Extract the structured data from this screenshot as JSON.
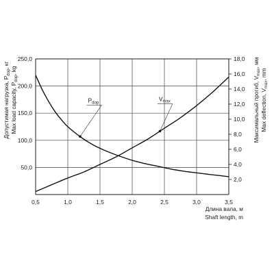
{
  "chart_data": {
    "type": "line",
    "xlabel_ru": "Длина вала, м",
    "xlabel_en": "Shaft length, m",
    "ylabel_left_ru": {
      "base": "Допустимая нагрузка, P",
      "sub": "dop",
      "unit": ", кг"
    },
    "ylabel_left_en": {
      "base": "Max load capacity, P",
      "sub": "dop",
      "unit": ", kg"
    },
    "ylabel_right_ru": {
      "base": "Максимальный прогиб, V",
      "sub": "max",
      "unit": ", мм"
    },
    "ylabel_right_en": {
      "base": "Max deflection, V",
      "sub": "max",
      "unit": ", mm"
    },
    "xlim": [
      0.5,
      3.5
    ],
    "ylim_left": [
      0,
      250
    ],
    "ylim_right": [
      0,
      18
    ],
    "x_ticks": [
      {
        "value": 0.5,
        "label": "0,5"
      },
      {
        "value": 1.0,
        "label": "1,0"
      },
      {
        "value": 1.5,
        "label": "1,5"
      },
      {
        "value": 2.0,
        "label": "2,0"
      },
      {
        "value": 2.5,
        "label": "2,5"
      },
      {
        "value": 3.0,
        "label": "3,0"
      },
      {
        "value": 3.5,
        "label": "3,5"
      }
    ],
    "y_left_ticks": [
      {
        "value": 50,
        "label": "50,0"
      },
      {
        "value": 100,
        "label": "100,0"
      },
      {
        "value": 150,
        "label": "150,0"
      },
      {
        "value": 200,
        "label": "200,0"
      },
      {
        "value": 250,
        "label": "250,0"
      }
    ],
    "y_right_ticks": [
      {
        "value": 2,
        "label": "2,0"
      },
      {
        "value": 4,
        "label": "4,0"
      },
      {
        "value": 6,
        "label": "6,0"
      },
      {
        "value": 8,
        "label": "8,0"
      },
      {
        "value": 10,
        "label": "10,0"
      },
      {
        "value": 12,
        "label": "12,0"
      },
      {
        "value": 14,
        "label": "14,0"
      },
      {
        "value": 16,
        "label": "16,0"
      },
      {
        "value": 18,
        "label": "18,0"
      }
    ],
    "grid": true,
    "series": [
      {
        "name": {
          "base": "P",
          "sub": "dop"
        },
        "axis": "left",
        "x": [
          0.5,
          0.6,
          0.7,
          0.8,
          0.9,
          1.0,
          1.2,
          1.4,
          1.6,
          1.8,
          2.0,
          2.2,
          2.4,
          2.6,
          2.8,
          3.0,
          3.2,
          3.5
        ],
        "y": [
          220,
          194,
          172,
          153,
          138,
          125,
          106,
          91,
          80,
          71,
          63,
          57,
          52,
          47,
          43,
          40,
          37,
          33
        ],
        "label_at": {
          "x": 1.42,
          "y": 170
        }
      },
      {
        "name": {
          "base": "V",
          "sub": "max"
        },
        "axis": "right",
        "x": [
          0.5,
          0.75,
          1.0,
          1.25,
          1.5,
          1.75,
          2.0,
          2.25,
          2.5,
          2.75,
          3.0,
          3.25,
          3.5
        ],
        "y": [
          0.4,
          1.3,
          2.2,
          3.0,
          4.0,
          5.0,
          6.2,
          7.4,
          8.8,
          10.2,
          11.8,
          13.6,
          15.6
        ],
        "label_at": {
          "x": 2.52,
          "y": 12.4
        }
      }
    ]
  }
}
